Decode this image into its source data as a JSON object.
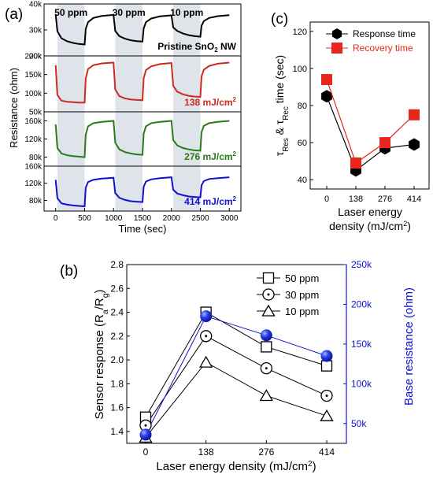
{
  "colors": {
    "black": "#000000",
    "red": "#cc2a1e",
    "green": "#2a7a1a",
    "blue": "#1010d0",
    "shade": "#dfe3ea",
    "sphere": "#2a3de8"
  },
  "chart_data": [
    {
      "panel": "(a)",
      "type": "line",
      "xlabel": "Time (sec)",
      "ylabel": "Resistance (ohm)",
      "xlim": [
        -200,
        3200
      ],
      "xticks": [
        0,
        500,
        1000,
        1500,
        2000,
        2500,
        3000
      ],
      "shade_intervals": [
        [
          30,
          500
        ],
        [
          1030,
          1500
        ],
        [
          2030,
          2500
        ]
      ],
      "shade_labels": [
        {
          "text": "50 ppm",
          "x": 265
        },
        {
          "text": "30 ppm",
          "x": 1265
        },
        {
          "text": "10 ppm",
          "x": 2265
        }
      ],
      "x": [
        0,
        30,
        100,
        200,
        300,
        400,
        500,
        520,
        560,
        650,
        800,
        1000,
        1030,
        1100,
        1200,
        1300,
        1400,
        1500,
        1520,
        1560,
        1650,
        1800,
        2000,
        2030,
        2100,
        2200,
        2300,
        2400,
        2500,
        2520,
        2560,
        2650,
        2800,
        3000
      ],
      "panels": [
        {
          "label": "Pristine SnO2 NW",
          "label_main": "Pristine SnO",
          "label_sub": "2",
          "label_tail": " NW",
          "color": "#000000",
          "ylim": [
            20,
            40
          ],
          "yticks": [
            "20k",
            "30k",
            "40k"
          ],
          "ytick_values": [
            20,
            30,
            40
          ],
          "y": [
            36,
            29.5,
            26.8,
            25.6,
            25.0,
            24.6,
            24.4,
            30.5,
            33.0,
            34.6,
            35.4,
            35.8,
            29.6,
            27.6,
            26.6,
            26.0,
            25.7,
            25.5,
            30.6,
            33.0,
            34.4,
            35.2,
            35.6,
            31.0,
            29.6,
            28.6,
            28.0,
            27.6,
            27.4,
            31.6,
            33.4,
            34.6,
            35.3,
            35.7
          ]
        },
        {
          "label": "138 mJ/cm2",
          "label_main": "138 mJ/cm",
          "label_sub": "2",
          "label_tail": "",
          "color": "#cc2a1e",
          "ylim": [
            50,
            200
          ],
          "yticks": [
            "50k",
            "100k",
            "150k",
            "200k"
          ],
          "ytick_values": [
            50,
            100,
            150,
            200
          ],
          "y": [
            175,
            95,
            80,
            77,
            76,
            75,
            75,
            140,
            165,
            175,
            180,
            182,
            110,
            92,
            86,
            83,
            82,
            81,
            140,
            162,
            172,
            178,
            181,
            120,
            104,
            97,
            93,
            91,
            90,
            145,
            163,
            173,
            179,
            182
          ]
        },
        {
          "label": "276 mJ/cm2",
          "label_main": "276 mJ/cm",
          "label_sub": "2",
          "label_tail": "",
          "color": "#2a7a1a",
          "ylim": [
            60,
            180
          ],
          "yticks": [
            "80k",
            "120k",
            "160k"
          ],
          "ytick_values": [
            80,
            120,
            160
          ],
          "y": [
            152,
            100,
            88,
            84,
            82,
            81,
            80,
            130,
            148,
            155,
            158,
            160,
            112,
            97,
            91,
            88,
            86,
            85,
            132,
            148,
            155,
            158,
            160,
            118,
            106,
            100,
            97,
            95,
            94,
            135,
            149,
            155,
            158,
            160
          ]
        },
        {
          "label": "414 mJ/cm2",
          "label_main": "414 mJ/cm",
          "label_sub": "2",
          "label_tail": "",
          "color": "#1010d0",
          "ylim": [
            55,
            160
          ],
          "yticks": [
            "80k",
            "120k",
            "160k"
          ],
          "ytick_values": [
            80,
            120,
            160
          ],
          "y": [
            128,
            85,
            73,
            70,
            68,
            67,
            66,
            110,
            123,
            128,
            131,
            133,
            97,
            86,
            81,
            78,
            77,
            76,
            112,
            124,
            129,
            132,
            134,
            105,
            96,
            92,
            89,
            88,
            87,
            115,
            125,
            130,
            132,
            134
          ]
        }
      ]
    },
    {
      "panel": "(c)",
      "type": "line",
      "xlabel": "Laser energy density (mJ/cm2)",
      "xlabel_line1": "Laser energy",
      "xlabel_line2_main": "density (mJ/cm",
      "xlabel_line2_sub": "2",
      "xlabel_line2_tail": ")",
      "ylabel": "τRes & τRec time (sec)",
      "categories": [
        "0",
        "138",
        "276",
        "414"
      ],
      "ylim": [
        35,
        125
      ],
      "yticks": [
        40,
        60,
        80,
        100,
        120
      ],
      "legend": "top-right",
      "series": [
        {
          "name": "Response time",
          "marker": "hexagon",
          "color": "#000000",
          "values": [
            85,
            45,
            57,
            59
          ]
        },
        {
          "name": "Recovery time",
          "marker": "square",
          "color": "#e8261e",
          "values": [
            94,
            49,
            60,
            75
          ]
        }
      ]
    },
    {
      "panel": "(b)",
      "type": "line",
      "xlabel": "Laser energy density (mJ/cm2)",
      "xlabel_main": "Laser energy density (mJ/cm",
      "xlabel_sub": "2",
      "xlabel_tail": ")",
      "ylabel": "Sensor response (Ra/Rg)",
      "y2label": "Base resistance (ohm)",
      "categories": [
        "0",
        "138",
        "276",
        "414"
      ],
      "ylim": [
        1.3,
        2.8
      ],
      "yticks": [
        "1.4",
        "1.6",
        "1.8",
        "2.0",
        "2.2",
        "2.4",
        "2.6",
        "2.8"
      ],
      "ytick_values": [
        1.4,
        1.6,
        1.8,
        2.0,
        2.2,
        2.4,
        2.6,
        2.8
      ],
      "y2lim": [
        25,
        250
      ],
      "y2ticks": [
        "50k",
        "100k",
        "150k",
        "200k",
        "250k"
      ],
      "y2tick_values": [
        50,
        100,
        150,
        200,
        250
      ],
      "legend": "top-right",
      "series": [
        {
          "name": "50 ppm",
          "marker": "square-open",
          "axis": "left",
          "values": [
            1.52,
            2.4,
            2.11,
            1.95
          ]
        },
        {
          "name": "30 ppm",
          "marker": "circle-dot",
          "axis": "left",
          "values": [
            1.45,
            2.2,
            1.93,
            1.7
          ]
        },
        {
          "name": "10 ppm",
          "marker": "triangle-open",
          "axis": "left",
          "values": [
            1.35,
            1.98,
            1.7,
            1.53
          ]
        },
        {
          "name": "Base resistance",
          "marker": "sphere",
          "axis": "right",
          "values": [
            36,
            185,
            161,
            135
          ]
        }
      ]
    }
  ]
}
